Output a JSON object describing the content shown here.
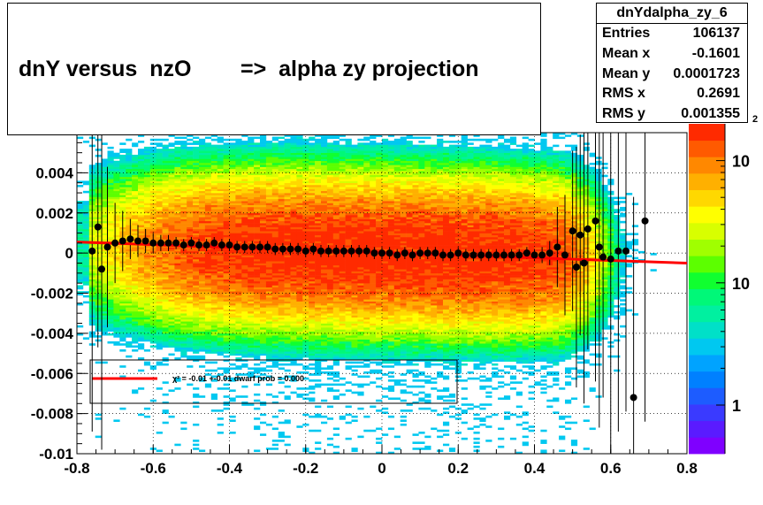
{
  "chart_data": {
    "type": "heatmap",
    "title": "dnY versus  nzO        =>  alpha zy projection",
    "xlabel": "",
    "ylabel": "",
    "xlim": [
      -0.8,
      0.8
    ],
    "ylim": [
      -0.01,
      0.006
    ],
    "x_ticks": [
      "-0.8",
      "-0.6",
      "-0.4",
      "-0.2",
      "0",
      "0.2",
      "0.4",
      "0.6",
      "0.8"
    ],
    "y_ticks": [
      "-0.01",
      "-0.008",
      "-0.006",
      "-0.004",
      "-0.002",
      "0",
      "0.002",
      "0.004"
    ],
    "colorbar": {
      "scale": "log",
      "ticks": [
        "1",
        "10",
        "10"
      ],
      "exponent_label": "2",
      "colors": [
        "#7f00ff",
        "#5a1bff",
        "#3a3aff",
        "#1d5cff",
        "#0080ff",
        "#00a3ff",
        "#00c8f0",
        "#00e0c8",
        "#00f0a0",
        "#00f878",
        "#10ff30",
        "#5cff00",
        "#a0ff00",
        "#d8ff00",
        "#ffff00",
        "#ffd800",
        "#ffb000",
        "#ff8800",
        "#ff5a00",
        "#ff2a00"
      ]
    },
    "density": {
      "description_values": "2D histogram of dnY vs alpha_zy; dense band centred near y=0 spanning x from -0.75 to 0.45, width ~ +/-0.004 at center",
      "peak_x": 0.0,
      "peak_y": 0.0
    },
    "profile_points": {
      "x": [
        -0.76,
        -0.745,
        -0.735,
        -0.72,
        -0.7,
        -0.68,
        -0.66,
        -0.64,
        -0.62,
        -0.6,
        -0.58,
        -0.56,
        -0.54,
        -0.52,
        -0.5,
        -0.48,
        -0.46,
        -0.44,
        -0.42,
        -0.4,
        -0.38,
        -0.36,
        -0.34,
        -0.32,
        -0.3,
        -0.28,
        -0.26,
        -0.24,
        -0.22,
        -0.2,
        -0.18,
        -0.16,
        -0.14,
        -0.12,
        -0.1,
        -0.08,
        -0.06,
        -0.04,
        -0.02,
        0.0,
        0.02,
        0.04,
        0.06,
        0.08,
        0.1,
        0.12,
        0.14,
        0.16,
        0.18,
        0.2,
        0.22,
        0.24,
        0.26,
        0.28,
        0.3,
        0.32,
        0.34,
        0.36,
        0.38,
        0.4,
        0.42,
        0.44,
        0.46,
        0.48,
        0.5,
        0.51,
        0.52,
        0.53,
        0.54,
        0.56,
        0.57,
        0.58,
        0.6,
        0.62,
        0.64,
        0.66,
        0.69
      ],
      "y": [
        0.0001,
        0.0013,
        -0.0008,
        0.0003,
        0.0005,
        0.0006,
        0.0007,
        0.0006,
        0.0006,
        0.0005,
        0.0005,
        0.0005,
        0.0005,
        0.0004,
        0.0005,
        0.0004,
        0.0004,
        0.0005,
        0.0004,
        0.0004,
        0.0003,
        0.0003,
        0.0003,
        0.0003,
        0.0003,
        0.0002,
        0.0002,
        0.0002,
        0.0002,
        0.0001,
        0.0002,
        0.0001,
        0.0001,
        0.0001,
        0.0001,
        0.0001,
        0.0001,
        0.0001,
        0.0,
        0.0,
        0.0,
        -0.0001,
        0.0,
        -0.0001,
        0.0,
        0.0,
        0.0,
        -0.0001,
        -0.0001,
        0.0,
        -0.0001,
        -0.0001,
        -0.0001,
        -0.0001,
        -0.0001,
        -0.0001,
        -0.0001,
        -0.0001,
        0.0,
        -0.0001,
        -0.0001,
        0.0,
        0.0003,
        -0.0001,
        0.0011,
        -0.0007,
        0.0009,
        -0.0005,
        0.0012,
        0.0016,
        0.0003,
        -0.0002,
        -0.0003,
        0.0001,
        0.0001,
        -0.0072,
        0.0016
      ],
      "err_y": [
        0.009,
        0.006,
        0.009,
        0.004,
        0.002,
        0.0015,
        0.001,
        0.0008,
        0.0006,
        0.0005,
        0.0004,
        0.0004,
        0.0003,
        0.0003,
        0.0003,
        0.0003,
        0.0003,
        0.0003,
        0.0003,
        0.0003,
        0.0003,
        0.0003,
        0.0003,
        0.0003,
        0.0003,
        0.0003,
        0.0003,
        0.0003,
        0.0003,
        0.0003,
        0.0003,
        0.0003,
        0.0003,
        0.0003,
        0.0003,
        0.0003,
        0.0003,
        0.0003,
        0.0003,
        0.0003,
        0.0003,
        0.0003,
        0.0003,
        0.0003,
        0.0003,
        0.0003,
        0.0003,
        0.0003,
        0.0003,
        0.0003,
        0.0003,
        0.0003,
        0.0003,
        0.0003,
        0.0003,
        0.0003,
        0.0003,
        0.0003,
        0.0003,
        0.0003,
        0.0004,
        0.0006,
        0.002,
        0.003,
        0.004,
        0.006,
        0.005,
        0.007,
        0.006,
        0.008,
        0.009,
        0.007,
        0.01,
        0.009,
        0.008,
        0.01,
        0.01
      ]
    },
    "fit_line": {
      "color": "#ff0000",
      "x": [
        -0.8,
        0.8
      ],
      "y": [
        0.00055,
        -0.0005
      ]
    },
    "legend": {
      "entry": "χ² =  -0.01 +-0.01 dwarf prob = 0.000"
    }
  },
  "stats": {
    "title": "dnYdalpha_zy_6",
    "rows": [
      {
        "key": "Entries",
        "value": "106137"
      },
      {
        "key": "Mean x",
        "value": "-0.1601"
      },
      {
        "key": "Mean y",
        "value": "0.0001723"
      },
      {
        "key": "RMS x",
        "value": "0.2691"
      },
      {
        "key": "RMS y",
        "value": "0.001355"
      }
    ]
  }
}
